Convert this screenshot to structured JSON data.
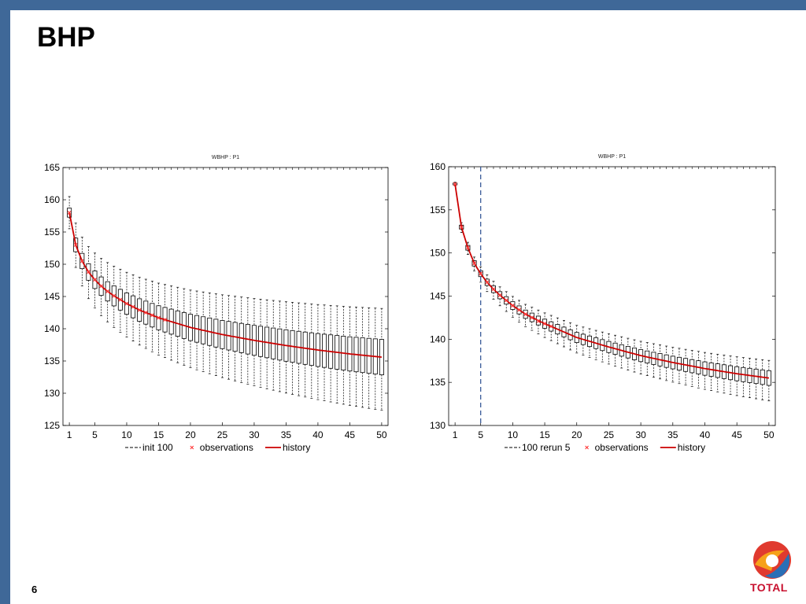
{
  "slide": {
    "title": "BHP",
    "page_number": "6",
    "logo_text": "TOTAL"
  },
  "colors": {
    "frame": "#3f6898",
    "history": "#cc0000",
    "observations": "#ff3333",
    "box": "#000000",
    "vline": "#3a5a99"
  },
  "chart_data": [
    {
      "type": "boxplot",
      "title": "WBHP : P1",
      "xlabel": "",
      "ylabel": "",
      "xlim": [
        0,
        51
      ],
      "ylim": [
        125,
        165
      ],
      "xticks": [
        1,
        5,
        10,
        15,
        20,
        25,
        30,
        35,
        40,
        45,
        50
      ],
      "yticks": [
        125,
        130,
        135,
        140,
        145,
        150,
        155,
        160,
        165
      ],
      "grid": false,
      "legend": [
        "init 100",
        "observations",
        "history"
      ],
      "legend_position": "bottom",
      "history": {
        "x": [
          1,
          2,
          3,
          4,
          5,
          6,
          7,
          8,
          9,
          10,
          12,
          15,
          20,
          25,
          30,
          35,
          40,
          45,
          50
        ],
        "y": [
          158,
          153,
          150.5,
          148.8,
          147.6,
          146.6,
          145.8,
          145.1,
          144.5,
          143.9,
          142.9,
          141.7,
          140.2,
          139.1,
          138.2,
          137.4,
          136.7,
          136.1,
          135.6
        ]
      },
      "observations": {
        "x": [
          1,
          2,
          3,
          4,
          5,
          6,
          7,
          8,
          9,
          10,
          11,
          12,
          13,
          14,
          15,
          16
        ],
        "y": [
          158,
          153,
          150.5,
          148.8,
          147.6,
          146.6,
          145.8,
          145.1,
          144.5,
          143.9,
          143.4,
          142.9,
          142.5,
          142.1,
          141.7,
          141.4
        ]
      },
      "boxes": {
        "first": {
          "min": 156,
          "q1": 157.8,
          "q3": 159.2,
          "max": 161
        },
        "last": {
          "min": 128,
          "q1": 133.5,
          "q3": 139,
          "max": 143.8
        },
        "n": 50
      },
      "vline": null
    },
    {
      "type": "boxplot",
      "title": "WBHP : P1",
      "xlabel": "",
      "ylabel": "",
      "xlim": [
        0,
        51
      ],
      "ylim": [
        130,
        160
      ],
      "xticks": [
        1,
        5,
        10,
        15,
        20,
        25,
        30,
        35,
        40,
        45,
        50
      ],
      "yticks": [
        130,
        135,
        140,
        145,
        150,
        155,
        160
      ],
      "grid": false,
      "legend": [
        "100 rerun 5",
        "observations",
        "history"
      ],
      "legend_position": "bottom",
      "history": {
        "x": [
          1,
          2,
          3,
          4,
          5,
          6,
          7,
          8,
          9,
          10,
          12,
          15,
          20,
          25,
          30,
          35,
          40,
          45,
          50
        ],
        "y": [
          158,
          153,
          150.6,
          148.8,
          147.6,
          146.6,
          145.8,
          145.1,
          144.5,
          143.9,
          142.9,
          141.8,
          140.2,
          139.1,
          138.1,
          137.3,
          136.6,
          136,
          135.5
        ]
      },
      "observations": {
        "x": [
          1,
          2,
          3,
          4,
          5,
          6,
          7,
          8,
          9,
          10,
          11,
          12,
          13,
          14,
          15,
          16
        ],
        "y": [
          158,
          153,
          150.6,
          148.8,
          147.6,
          146.6,
          145.8,
          145.1,
          144.5,
          143.9,
          143.4,
          142.9,
          142.5,
          142.1,
          141.8,
          141.5
        ]
      },
      "boxes": {
        "first": {
          "min": 157.8,
          "q1": 157.9,
          "q3": 158.1,
          "max": 158.2
        },
        "last": {
          "min": 132.8,
          "q1": 134.6,
          "q3": 136.3,
          "max": 137.5
        },
        "n": 50
      },
      "vline": 5
    }
  ]
}
